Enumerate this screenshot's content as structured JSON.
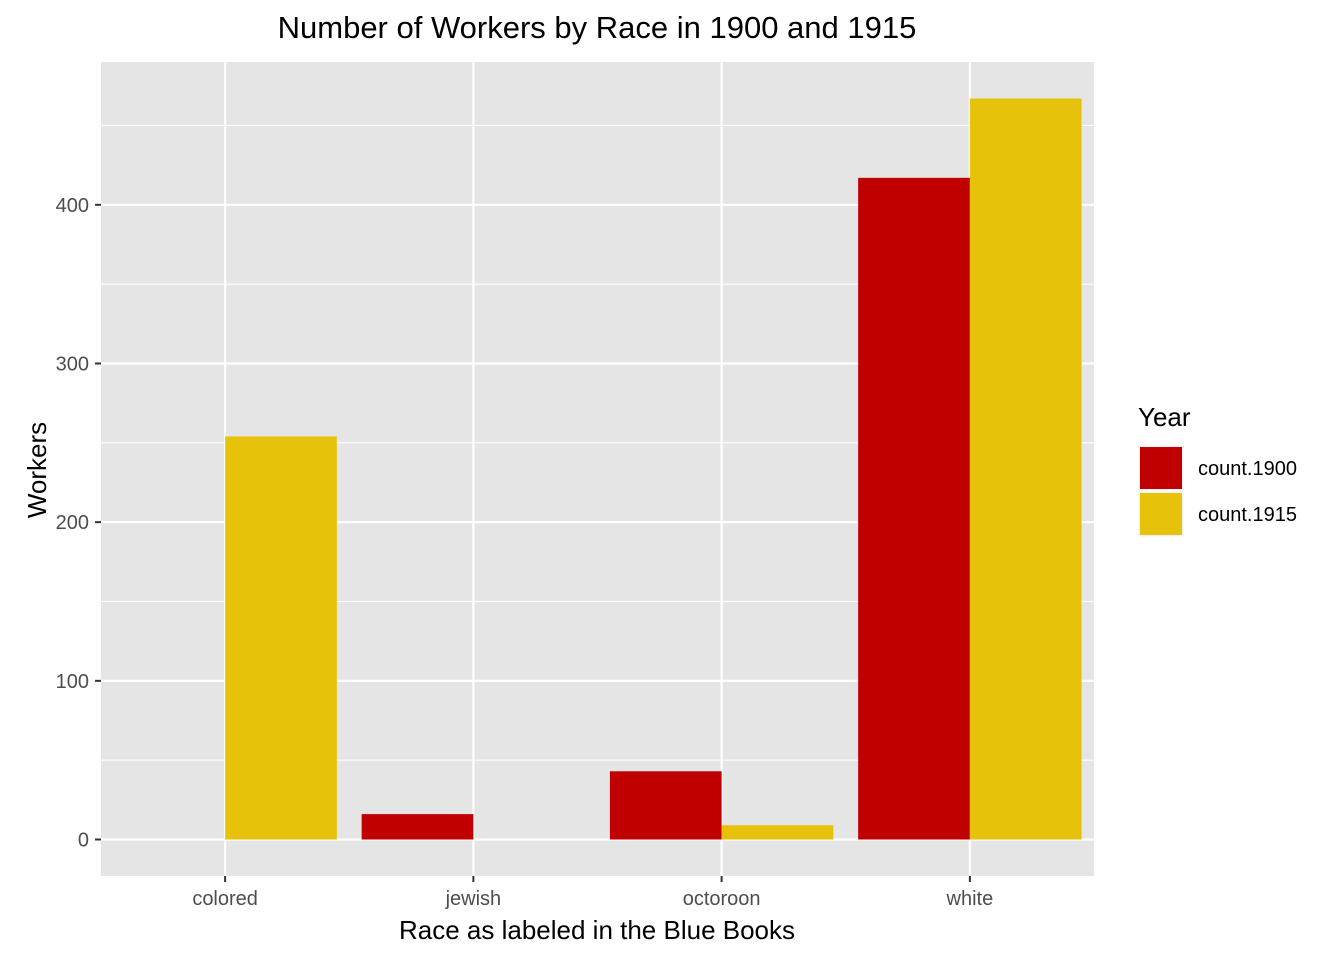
{
  "chart_data": {
    "type": "bar",
    "title": "Number of Workers by Race in 1900 and 1915",
    "xlabel": "Race as labeled in the Blue Books",
    "ylabel": "Workers",
    "categories": [
      "colored",
      "jewish",
      "octoroon",
      "white"
    ],
    "series": [
      {
        "name": "count.1900",
        "color": "#C00000",
        "values": [
          0,
          16,
          43,
          417
        ]
      },
      {
        "name": "count.1915",
        "color": "#E6C20A",
        "values": [
          254,
          0,
          9,
          467
        ]
      }
    ],
    "ylim": [
      -23,
      490
    ],
    "yticks": [
      0,
      100,
      200,
      300,
      400
    ],
    "grid": true,
    "legend": {
      "title": "Year",
      "position": "right"
    },
    "colors": {
      "panel": "#E5E5E5",
      "grid": "#FFFFFF",
      "tick": "#333333"
    }
  }
}
